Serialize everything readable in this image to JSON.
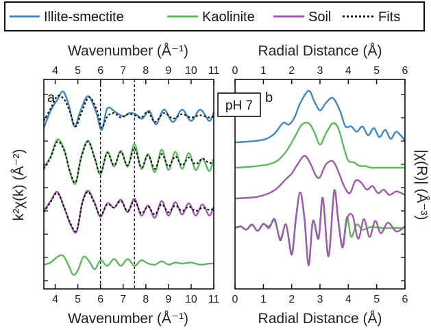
{
  "legend": {
    "items": [
      {
        "label": "Illite-smectite",
        "color": "#3f86c4",
        "style": "solid"
      },
      {
        "label": "Kaolinite",
        "color": "#5cb85c",
        "style": "solid"
      },
      {
        "label": "Soil",
        "color": "#a257b0",
        "style": "solid"
      },
      {
        "label": "Fits",
        "color": "#111111",
        "style": "dashed"
      }
    ]
  },
  "panels": {
    "a": {
      "letter": "a",
      "top_label": "Wavenumber (Å⁻¹)",
      "bottom_label": "Wavenumber (Å⁻¹)",
      "left_label": "k²χ(k) (Å⁻²)"
    },
    "b": {
      "letter": "b",
      "top_label": "Radial Distance (Å)",
      "bottom_label": "Radial Distance (Å)",
      "right_label": "|χ(R)| (Å⁻³)",
      "box_label": "pH 7"
    }
  },
  "chart_data": [
    {
      "type": "line",
      "panel": "a",
      "xlabel": "Wavenumber (Å⁻¹)",
      "ylabel": "k²χ(k) (Å⁻²)",
      "xlim": [
        3.5,
        11
      ],
      "xticks": [
        4,
        5,
        6,
        7,
        8,
        9,
        10,
        11
      ],
      "vlines": [
        6.0,
        7.5
      ],
      "series": [
        {
          "name": "Illite-smectite",
          "color": "#3f86c4",
          "offset": 3,
          "x": [
            3.5,
            3.8,
            4.1,
            4.35,
            4.6,
            4.85,
            5.1,
            5.45,
            5.8,
            6.05,
            6.3,
            6.65,
            7.0,
            7.3,
            7.55,
            7.85,
            8.15,
            8.45,
            8.8,
            9.2,
            9.6,
            10.0,
            10.4,
            10.8,
            11.0
          ],
          "y": [
            -0.5,
            0.25,
            0.75,
            1.1,
            0.5,
            -0.45,
            0.2,
            0.9,
            0.2,
            -0.6,
            0.35,
            0.2,
            0.0,
            0.15,
            0.1,
            -0.1,
            0.25,
            -0.35,
            0.3,
            -0.25,
            0.3,
            -0.2,
            0.3,
            -0.2,
            0.2
          ]
        },
        {
          "name": "Kaolinite",
          "color": "#5cb85c",
          "offset": 2,
          "x": [
            3.5,
            3.8,
            4.1,
            4.4,
            4.65,
            4.9,
            5.15,
            5.45,
            5.75,
            6.0,
            6.3,
            6.6,
            6.9,
            7.2,
            7.5,
            7.8,
            8.1,
            8.4,
            8.7,
            9.0,
            9.3,
            9.6,
            9.9,
            10.2,
            10.5,
            10.8,
            11.0
          ],
          "y": [
            -0.3,
            0.2,
            0.95,
            0.5,
            -0.5,
            -1.0,
            0.2,
            0.9,
            0.1,
            -0.6,
            0.4,
            -0.25,
            0.45,
            -0.25,
            0.75,
            -0.35,
            0.3,
            -0.5,
            0.5,
            -0.4,
            0.4,
            -0.35,
            0.35,
            -0.4,
            0.1,
            -0.45,
            0.1
          ]
        },
        {
          "name": "Soil",
          "color": "#a257b0",
          "offset": 1,
          "x": [
            3.5,
            3.8,
            4.1,
            4.4,
            4.7,
            4.95,
            5.2,
            5.45,
            5.75,
            6.0,
            6.3,
            6.6,
            6.9,
            7.2,
            7.5,
            7.8,
            8.1,
            8.4,
            8.7,
            9.0,
            9.3,
            9.6,
            9.9,
            10.2,
            10.5,
            10.8,
            11.0
          ],
          "y": [
            -0.1,
            0.35,
            0.75,
            0.05,
            -0.75,
            -1.0,
            0.3,
            0.8,
            0.25,
            -0.35,
            0.25,
            0.05,
            0.4,
            -0.15,
            0.45,
            -0.3,
            0.15,
            -0.4,
            0.35,
            -0.3,
            0.3,
            -0.25,
            0.25,
            -0.3,
            0.2,
            -0.3,
            0.1
          ]
        },
        {
          "name": "Kaolinite",
          "color": "#5cb85c",
          "offset": 0,
          "x": [
            3.5,
            3.8,
            4.1,
            4.35,
            4.6,
            4.8,
            5.0,
            5.25,
            5.5,
            5.75,
            6.0,
            6.3,
            6.6,
            6.9,
            7.2,
            7.5,
            7.8,
            8.1,
            8.4,
            8.7,
            9.0,
            9.3,
            9.6,
            10.0,
            10.4,
            10.8,
            11.0
          ],
          "y": [
            -0.05,
            0.05,
            0.3,
            0.35,
            -0.1,
            -0.5,
            -0.3,
            0.3,
            0.1,
            -0.25,
            0.15,
            -0.1,
            0.2,
            -0.1,
            0.2,
            -0.1,
            0.15,
            0.0,
            -0.05,
            0.1,
            -0.05,
            0.05,
            0.0,
            0.05,
            -0.05,
            0.0,
            0.0
          ]
        },
        {
          "name": "Fits",
          "color": "#111111",
          "dashed": true,
          "offset": 3,
          "x": [
            3.5,
            3.8,
            4.1,
            4.4,
            4.65,
            4.9,
            5.15,
            5.5,
            5.85,
            6.05,
            6.3,
            6.6,
            6.9,
            7.2,
            7.5,
            7.8,
            8.1,
            8.4,
            8.8,
            9.2,
            9.6,
            10.0,
            10.4,
            10.8,
            11.0
          ],
          "y": [
            -0.2,
            0.35,
            0.9,
            0.75,
            0.2,
            -0.45,
            0.15,
            0.85,
            0.25,
            -0.5,
            0.0,
            0.15,
            -0.05,
            0.1,
            0.05,
            -0.05,
            0.2,
            -0.25,
            0.15,
            -0.1,
            0.1,
            -0.05,
            0.05,
            -0.05,
            0.0
          ]
        },
        {
          "name": "Fits",
          "color": "#111111",
          "dashed": true,
          "offset": 2,
          "x": [
            3.5,
            3.8,
            4.1,
            4.4,
            4.65,
            4.9,
            5.15,
            5.45,
            5.75,
            6.0,
            6.3,
            6.6,
            6.9,
            7.2,
            7.5,
            7.8,
            8.1,
            8.4,
            8.7,
            9.0,
            9.3,
            9.6,
            9.9,
            10.2,
            10.5,
            10.8,
            11.0
          ],
          "y": [
            -0.35,
            0.15,
            0.85,
            0.45,
            -0.45,
            -0.95,
            0.15,
            0.85,
            0.1,
            -0.55,
            0.35,
            -0.2,
            0.4,
            -0.2,
            0.55,
            -0.3,
            0.25,
            -0.35,
            0.3,
            -0.25,
            0.2,
            -0.2,
            0.15,
            -0.15,
            0.1,
            -0.1,
            0.0
          ]
        },
        {
          "name": "Fits",
          "color": "#111111",
          "dashed": true,
          "offset": 1,
          "x": [
            3.5,
            3.8,
            4.1,
            4.4,
            4.7,
            4.95,
            5.2,
            5.45,
            5.75,
            6.0,
            6.3,
            6.6,
            6.9,
            7.2,
            7.5,
            7.8,
            8.1,
            8.4,
            8.7,
            9.0,
            9.3,
            9.6,
            9.9,
            10.2,
            10.5,
            10.8,
            11.0
          ],
          "y": [
            -0.15,
            0.3,
            0.7,
            0.05,
            -0.7,
            -0.95,
            0.25,
            0.75,
            0.2,
            -0.3,
            0.2,
            0.05,
            0.35,
            -0.1,
            0.35,
            -0.2,
            0.1,
            -0.25,
            0.2,
            -0.15,
            0.15,
            -0.1,
            0.1,
            -0.1,
            0.05,
            -0.05,
            0.0
          ]
        }
      ]
    },
    {
      "type": "line",
      "panel": "b",
      "xlabel": "Radial Distance (Å)",
      "ylabel": "|χ(R)| (Å⁻³)",
      "xlim": [
        0,
        6
      ],
      "xticks": [
        0,
        1,
        2,
        3,
        4,
        5,
        6
      ],
      "series": [
        {
          "name": "Illite-smectite",
          "color": "#3f86c4",
          "offset": 3,
          "x": [
            0,
            0.4,
            0.8,
            1.1,
            1.4,
            1.7,
            1.9,
            2.1,
            2.3,
            2.6,
            2.8,
            3.0,
            3.2,
            3.45,
            3.7,
            3.9,
            4.1,
            4.3,
            4.5,
            4.7,
            4.9,
            5.1,
            5.3,
            5.5,
            5.7,
            6.0
          ],
          "y": [
            0,
            0.02,
            0.05,
            0.1,
            0.25,
            0.55,
            0.5,
            0.7,
            1.1,
            1.45,
            1.15,
            0.9,
            1.1,
            1.25,
            0.9,
            0.45,
            0.45,
            0.3,
            0.45,
            0.2,
            0.4,
            0.15,
            0.35,
            0.1,
            0.3,
            0.05
          ]
        },
        {
          "name": "Kaolinite",
          "color": "#5cb85c",
          "offset": 2,
          "x": [
            0,
            0.4,
            0.8,
            1.2,
            1.5,
            1.8,
            2.1,
            2.35,
            2.6,
            2.8,
            3.0,
            3.2,
            3.45,
            3.65,
            3.85,
            4.0,
            4.2,
            4.4,
            4.6,
            4.8,
            5.0,
            5.5,
            6.0
          ],
          "y": [
            0,
            0.02,
            0.05,
            0.1,
            0.2,
            0.45,
            0.85,
            1.2,
            1.25,
            1.0,
            0.65,
            0.95,
            1.25,
            1.1,
            0.55,
            0.2,
            0.15,
            0.05,
            0.05,
            0.0,
            0.0,
            0.0,
            0.0
          ]
        },
        {
          "name": "Soil",
          "color": "#a257b0",
          "offset": 1,
          "x": [
            0,
            0.4,
            0.8,
            1.2,
            1.5,
            1.8,
            2.0,
            2.2,
            2.45,
            2.65,
            2.85,
            3.0,
            3.2,
            3.45,
            3.65,
            3.85,
            4.05,
            4.25,
            4.45,
            4.65,
            4.85,
            5.05,
            5.25,
            5.45,
            5.7,
            6.0
          ],
          "y": [
            0,
            0.02,
            0.05,
            0.15,
            0.3,
            0.55,
            0.7,
            0.95,
            1.2,
            1.0,
            0.65,
            0.6,
            0.95,
            1.05,
            0.75,
            0.35,
            0.15,
            0.5,
            0.45,
            0.25,
            0.35,
            0.15,
            0.25,
            0.1,
            0.2,
            0.1
          ]
        },
        {
          "name": "Kaolinite",
          "color": "#5cb85c",
          "offset": 0,
          "x": [
            0,
            0.2,
            0.4,
            0.6,
            0.8,
            1.0,
            1.2,
            1.4,
            1.6,
            1.8,
            2.0,
            2.15,
            2.3,
            2.45,
            2.6,
            2.75,
            2.95,
            3.1,
            3.3,
            3.5,
            3.65,
            3.8,
            3.95,
            4.1,
            4.3,
            4.5,
            4.8,
            5.2,
            5.6,
            6.0
          ],
          "y": [
            0,
            0.05,
            -0.05,
            0.08,
            -0.08,
            0.1,
            0.05,
            0.2,
            -0.3,
            0.1,
            -0.7,
            0.3,
            1.0,
            0.3,
            -1.0,
            0.2,
            -0.25,
            0.8,
            -0.75,
            1.0,
            0.2,
            -0.5,
            0.3,
            -0.25,
            0.1,
            -0.05,
            0.03,
            0.0,
            0.0,
            0.0
          ]
        },
        {
          "name": "Soil",
          "color": "#a257b0",
          "offset": 0,
          "x": [
            0,
            0.2,
            0.4,
            0.6,
            0.8,
            1.0,
            1.2,
            1.4,
            1.6,
            1.8,
            2.0,
            2.15,
            2.3,
            2.45,
            2.6,
            2.75,
            2.95,
            3.1,
            3.3,
            3.5,
            3.65,
            3.8,
            3.95,
            4.15,
            4.35,
            4.55,
            4.75,
            4.95,
            5.15,
            5.4,
            5.7,
            6.0
          ],
          "y": [
            0,
            0.04,
            -0.04,
            0.1,
            -0.08,
            0.12,
            0.0,
            0.25,
            -0.35,
            0.1,
            -0.75,
            0.25,
            1.0,
            0.25,
            -1.05,
            0.2,
            -0.3,
            0.85,
            -0.8,
            1.05,
            0.15,
            -0.55,
            0.25,
            0.35,
            -0.3,
            0.25,
            -0.25,
            0.2,
            -0.15,
            0.15,
            -0.1,
            0.05
          ]
        }
      ]
    }
  ]
}
